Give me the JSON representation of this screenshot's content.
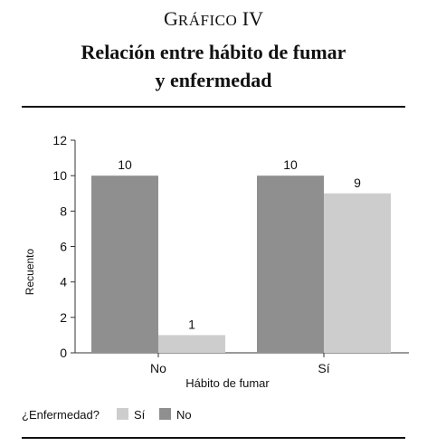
{
  "header": {
    "kicker_first": "G",
    "kicker_rest": "RÁFICO",
    "kicker_num": "IV",
    "title_line1": "Relación entre hábito de fumar",
    "title_line2": "y enfermedad"
  },
  "chart_data": {
    "type": "bar",
    "categories": [
      "No",
      "Sí"
    ],
    "series": [
      {
        "name": "No",
        "values": [
          10,
          10
        ],
        "color": "#8f8f8f"
      },
      {
        "name": "Sí",
        "values": [
          1,
          9
        ],
        "color": "#cdcdcd"
      }
    ],
    "xlabel": "Hábito de fumar",
    "ylabel": "Recuento",
    "ylim": [
      0,
      12
    ],
    "yticks": [
      0,
      2,
      4,
      6,
      8,
      10,
      12
    ],
    "grid": false,
    "legend": {
      "title": "¿Enfermedad?",
      "placement": "bottom-left",
      "entries": [
        {
          "label": "Sí",
          "color": "#cdcdcd"
        },
        {
          "label": "No",
          "color": "#8f8f8f"
        }
      ]
    }
  }
}
